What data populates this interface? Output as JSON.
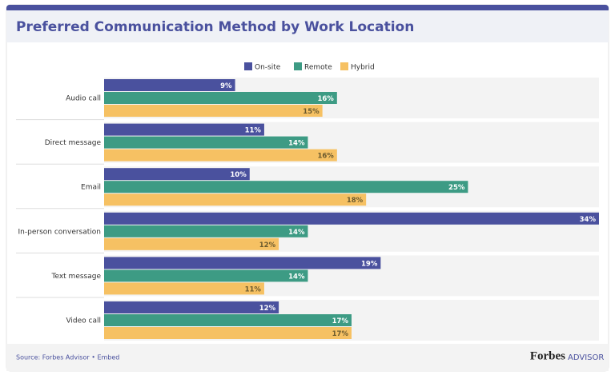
{
  "chart_data": {
    "type": "hbar",
    "title": "Preferred Communication Method by Work Location",
    "categories": [
      "Audio call",
      "Direct message",
      "Email",
      "In-person conversation",
      "Text message",
      "Video call"
    ],
    "series": [
      {
        "name": "On-site",
        "color": "#4a519e",
        "values": [
          9,
          11,
          10,
          34,
          19,
          12
        ],
        "value_labels": [
          "9%",
          "11%",
          "10%",
          "34%",
          "19%",
          "12%"
        ]
      },
      {
        "name": "Remote",
        "color": "#3d9b84",
        "values": [
          16,
          14,
          25,
          14,
          14,
          17
        ],
        "value_labels": [
          "16%",
          "14%",
          "25%",
          "14%",
          "14%",
          "17%"
        ]
      },
      {
        "name": "Hybrid",
        "color": "#f6c163",
        "values": [
          15,
          16,
          18,
          12,
          11,
          17
        ],
        "value_labels": [
          "15%",
          "16%",
          "18%",
          "12%",
          "11%",
          "17%"
        ]
      }
    ],
    "xlim": [
      0,
      34
    ],
    "source": "Source: Forbes Advisor • Embed",
    "brand": "Forbes",
    "brand_sub": "ADVISOR"
  }
}
